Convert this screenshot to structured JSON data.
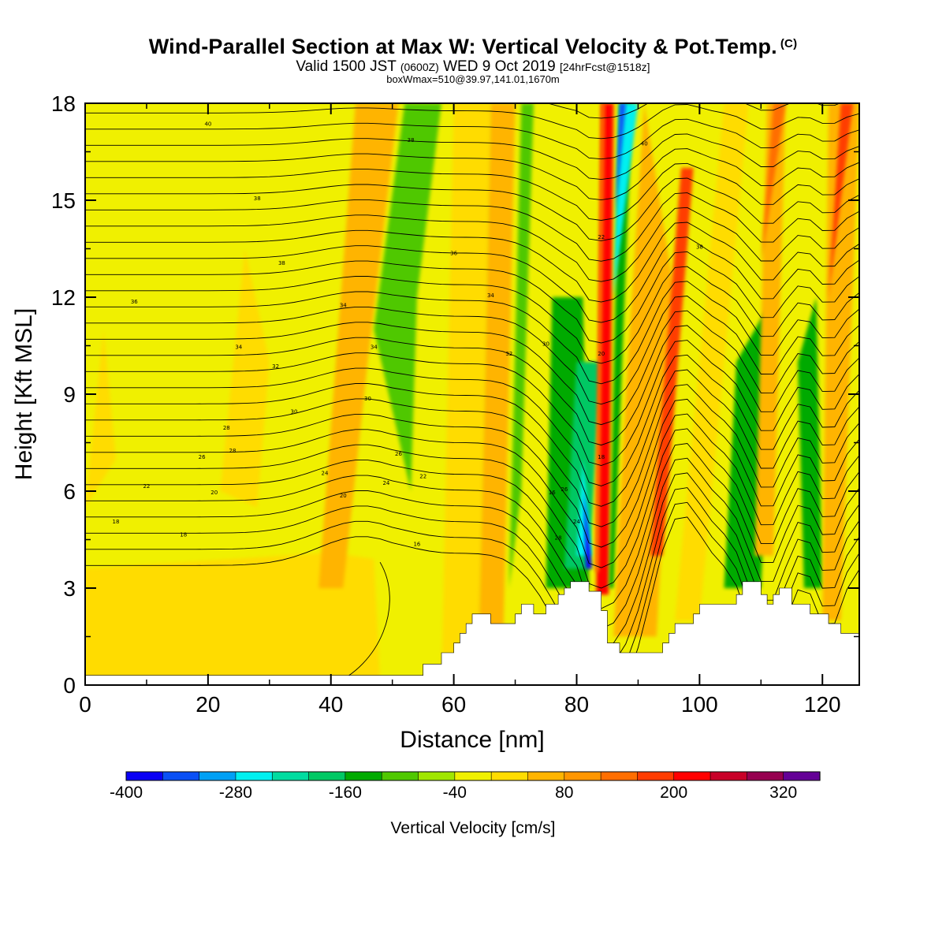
{
  "header": {
    "title": "Wind-Parallel Section at Max W: Vertical Velocity & Pot.Temp.",
    "copyright": "(C)",
    "valid_prefix": "Valid 1500 JST",
    "valid_utc": "(0600Z)",
    "valid_date": "WED 9 Oct 2019",
    "forecast": "[24hrFcst@1518z]",
    "box_info": "boxWmax=510@39.97,141.01,1670m"
  },
  "chart_data": {
    "type": "heatmap",
    "xlabel": "Distance [nm]",
    "ylabel": "Height [Kft MSL]",
    "xlim": [
      0,
      126
    ],
    "ylim": [
      0,
      18
    ],
    "x_ticks": [
      0,
      20,
      40,
      60,
      80,
      100,
      120
    ],
    "y_ticks": [
      0,
      3,
      6,
      9,
      12,
      15,
      18
    ],
    "colorbar": {
      "title": "Vertical Velocity [cm/s]",
      "range": [
        -400,
        360
      ],
      "labels": [
        -400,
        -280,
        -160,
        -40,
        80,
        200,
        320
      ],
      "colors": [
        "#0a00f5",
        "#0a50f5",
        "#00a0f5",
        "#00f0f0",
        "#00dca0",
        "#00c864",
        "#00aa00",
        "#50c800",
        "#a0e600",
        "#f0f000",
        "#ffdc00",
        "#ffb400",
        "#ff9600",
        "#ff6e00",
        "#ff3c00",
        "#ff0000",
        "#c80028",
        "#960050",
        "#640096"
      ]
    },
    "contour_variable": "Potential temperature",
    "contour_labels": [
      "40",
      "38",
      "38",
      "36",
      "34",
      "34",
      "34",
      "32",
      "30",
      "30",
      "28",
      "28",
      "26",
      "26",
      "24",
      "24",
      "22",
      "22",
      "20",
      "20",
      "18",
      "18",
      "16",
      "16",
      "38",
      "36",
      "34",
      "32",
      "30",
      "28",
      "26",
      "24",
      "22",
      "20",
      "18",
      "40",
      "38"
    ],
    "terrain_profile": [
      [
        0,
        0.3
      ],
      [
        55,
        0.3
      ],
      [
        55,
        0.65
      ],
      [
        58,
        0.65
      ],
      [
        58,
        1.0
      ],
      [
        60,
        1.0
      ],
      [
        60,
        1.3
      ],
      [
        61,
        1.3
      ],
      [
        61,
        1.6
      ],
      [
        62,
        1.6
      ],
      [
        62,
        1.9
      ],
      [
        63,
        1.9
      ],
      [
        63,
        2.2
      ],
      [
        66,
        2.2
      ],
      [
        66,
        1.9
      ],
      [
        70,
        1.9
      ],
      [
        70,
        2.2
      ],
      [
        71,
        2.2
      ],
      [
        71,
        2.5
      ],
      [
        73,
        2.5
      ],
      [
        73,
        2.2
      ],
      [
        75,
        2.2
      ],
      [
        75,
        2.5
      ],
      [
        77,
        2.5
      ],
      [
        77,
        2.8
      ],
      [
        78,
        2.8
      ],
      [
        78,
        3.0
      ],
      [
        79,
        3.0
      ],
      [
        79,
        3.2
      ],
      [
        82,
        3.2
      ],
      [
        82,
        2.9
      ],
      [
        84,
        2.9
      ],
      [
        84,
        2.3
      ],
      [
        85,
        2.3
      ],
      [
        85,
        1.3
      ],
      [
        87,
        1.3
      ],
      [
        87,
        1.0
      ],
      [
        94,
        1.0
      ],
      [
        94,
        1.3
      ],
      [
        95,
        1.3
      ],
      [
        95,
        1.6
      ],
      [
        96,
        1.6
      ],
      [
        96,
        1.9
      ],
      [
        99,
        1.9
      ],
      [
        99,
        2.2
      ],
      [
        100,
        2.2
      ],
      [
        100,
        2.5
      ],
      [
        106,
        2.5
      ],
      [
        106,
        2.8
      ],
      [
        107,
        2.8
      ],
      [
        107,
        3.2
      ],
      [
        110,
        3.2
      ],
      [
        110,
        2.8
      ],
      [
        111,
        2.8
      ],
      [
        111,
        2.5
      ],
      [
        112,
        2.5
      ],
      [
        112,
        2.8
      ],
      [
        113,
        2.8
      ],
      [
        113,
        3.0
      ],
      [
        115,
        3.0
      ],
      [
        115,
        2.5
      ],
      [
        118,
        2.5
      ],
      [
        118,
        2.2
      ],
      [
        121,
        2.2
      ],
      [
        121,
        1.9
      ],
      [
        123,
        1.9
      ],
      [
        123,
        1.6
      ],
      [
        126,
        1.6
      ]
    ]
  }
}
